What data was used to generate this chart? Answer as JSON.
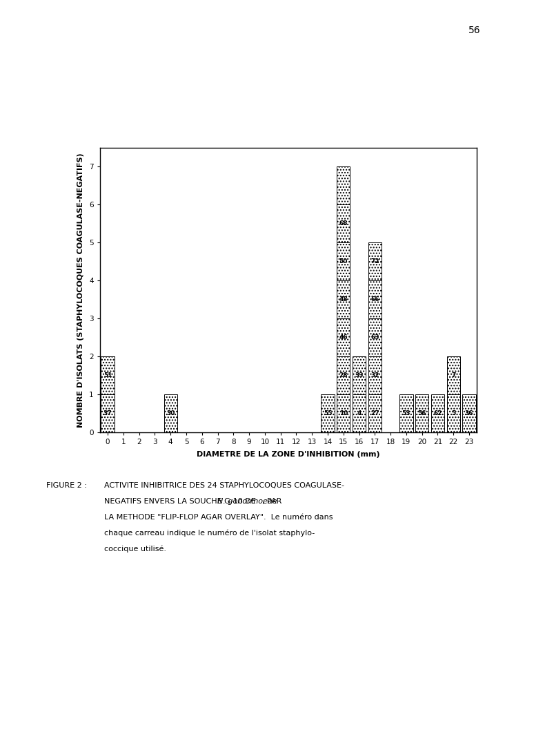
{
  "bars": [
    {
      "x": 0,
      "height": 2,
      "labels": [
        "37",
        "51"
      ]
    },
    {
      "x": 4,
      "height": 1,
      "labels": [
        "30"
      ]
    },
    {
      "x": 14,
      "height": 1,
      "labels": [
        "55"
      ]
    },
    {
      "x": 15,
      "height": 7,
      "labels": [
        "10",
        "28",
        "46",
        "48",
        "50",
        "68",
        ""
      ]
    },
    {
      "x": 16,
      "height": 2,
      "labels": [
        "4",
        "33"
      ]
    },
    {
      "x": 17,
      "height": 5,
      "labels": [
        "27",
        "32",
        "63",
        "66",
        "72"
      ]
    },
    {
      "x": 19,
      "height": 1,
      "labels": [
        "53"
      ]
    },
    {
      "x": 20,
      "height": 1,
      "labels": [
        "56"
      ]
    },
    {
      "x": 21,
      "height": 1,
      "labels": [
        "62"
      ]
    },
    {
      "x": 22,
      "height": 2,
      "labels": [
        "5",
        "7"
      ]
    },
    {
      "x": 23,
      "height": 1,
      "labels": [
        "36"
      ]
    }
  ],
  "xlim": [
    -0.5,
    23.5
  ],
  "ylim": [
    0,
    7.5
  ],
  "yticks": [
    0,
    1,
    2,
    3,
    4,
    5,
    6,
    7
  ],
  "xticks": [
    0,
    1,
    2,
    3,
    4,
    5,
    6,
    7,
    8,
    9,
    10,
    11,
    12,
    13,
    14,
    15,
    16,
    17,
    18,
    19,
    20,
    21,
    22,
    23
  ],
  "xlabel": "DIAMETRE DE LA ZONE D'INHIBITION (mm)",
  "ylabel": "NOMBRE D'ISOLATS (STAPHYLOCOQUES COAGULASE-NEGATIFS)",
  "bar_hatch": "....",
  "bar_edgecolor": "#000000",
  "label_fontsize": 6.5,
  "axis_fontsize": 8,
  "tick_fontsize": 7.5,
  "page_number": "56"
}
